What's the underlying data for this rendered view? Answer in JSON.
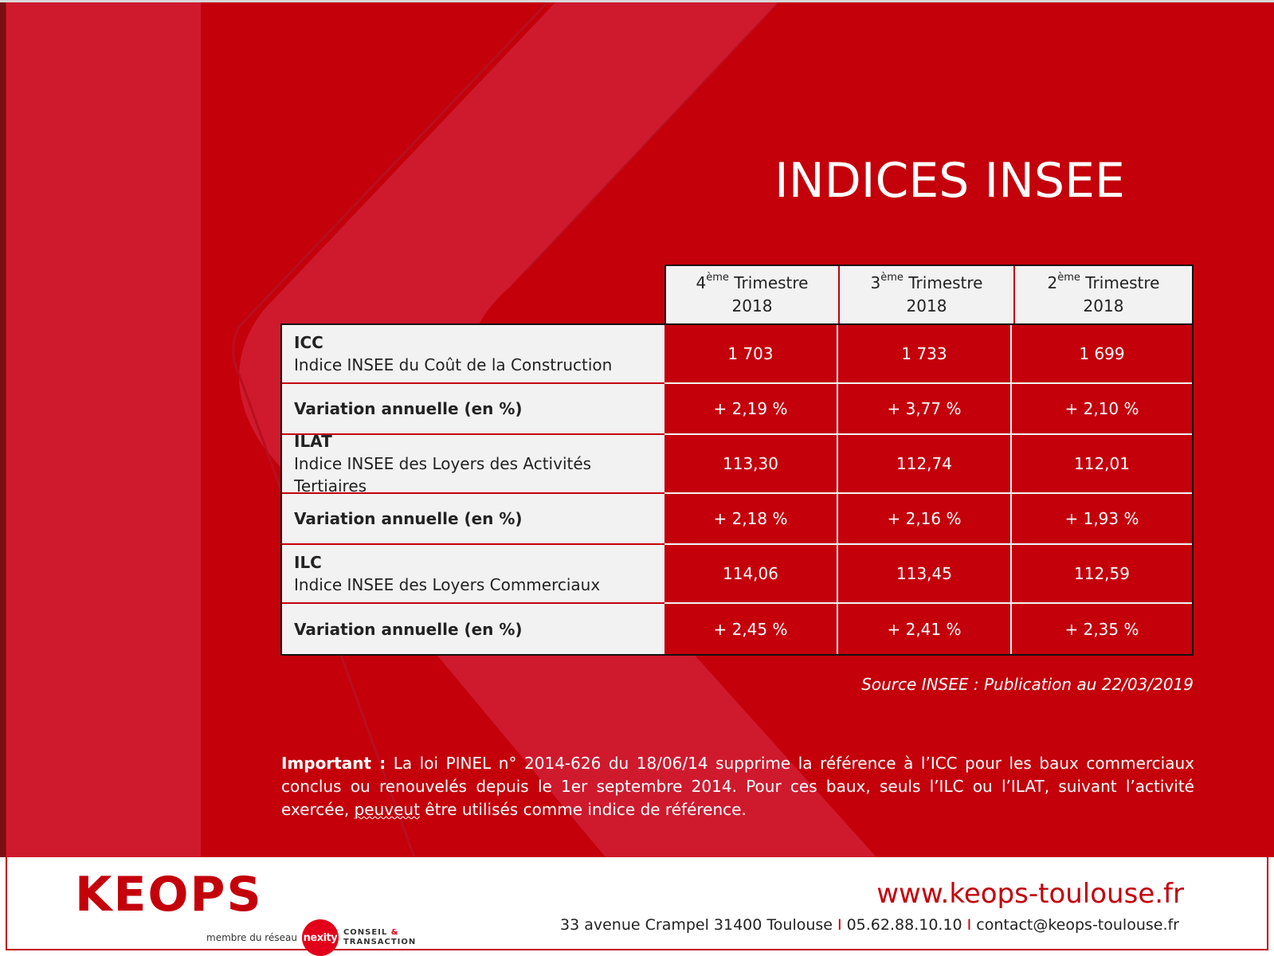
{
  "title": "INDICES INSEE",
  "colors": {
    "brand_red": "#c4000b",
    "light_grey": "#f2f2f2"
  },
  "table": {
    "columns": [
      {
        "num": "4",
        "sup": "ème",
        "label": "Trimestre",
        "year": "2018"
      },
      {
        "num": "3",
        "sup": "ème",
        "label": "Trimestre",
        "year": "2018"
      },
      {
        "num": "2",
        "sup": "ème",
        "label": "Trimestre",
        "year": "2018"
      }
    ],
    "rows": [
      {
        "code": "ICC",
        "desc": "Indice INSEE du Coût de la Construction",
        "values": [
          "1 703",
          "1 733",
          "1 699"
        ]
      },
      {
        "var_label": "Variation annuelle (en %)",
        "values": [
          "+ 2,19 %",
          "+ 3,77 %",
          "+ 2,10 %"
        ]
      },
      {
        "code": "ILAT",
        "desc": "Indice INSEE des Loyers des Activités Tertiaires",
        "values": [
          "113,30",
          "112,74",
          "112,01"
        ]
      },
      {
        "var_label": "Variation annuelle (en %)",
        "values": [
          "+ 2,18 %",
          "+ 2,16 %",
          "+ 1,93 %"
        ]
      },
      {
        "code": "ILC",
        "desc": "Indice INSEE des Loyers Commerciaux",
        "values": [
          "114,06",
          "113,45",
          "112,59"
        ]
      },
      {
        "var_label": "Variation annuelle (en %)",
        "values": [
          "+ 2,45 %",
          "+ 2,41 %",
          "+ 2,35 %"
        ]
      }
    ]
  },
  "source": "Source INSEE : Publication au 22/03/2019",
  "note": {
    "label": "Important :",
    "text_before": " La loi PINEL n° 2014-626 du 18/06/14 supprime la référence à l’ICC pour les baux commerciaux conclus ou renouvelés depuis le 1er septembre 2014. Pour ces baux, seuls l’ILC ou l’ILAT, suivant l’activité exercée, ",
    "squiggle_word": "peuveut",
    "text_after": " être utilisés comme indice de référence."
  },
  "footer": {
    "logo": "KEOPS",
    "member_text": "membre du réseau",
    "nexity": "nexity",
    "conseil_line1": "CONSEIL",
    "conseil_amp": "&",
    "conseil_line2": "TRANSACTION",
    "website": "www.keops-toulouse.fr",
    "address": "33 avenue Crampel 31400 Toulouse",
    "separator": "I",
    "phone": "05.62.88.10.10",
    "email": "contact@keops-toulouse.fr"
  }
}
